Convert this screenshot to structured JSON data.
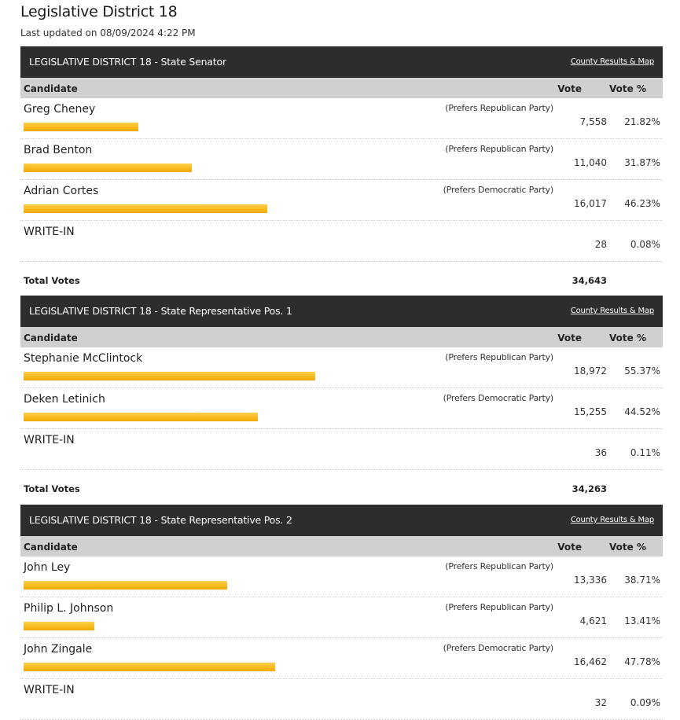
{
  "page": {
    "title": "Legislative District 18",
    "last_updated": "Last updated on 08/09/2024 4:22 PM"
  },
  "colors": {
    "header_bg": "#2d2d2d",
    "column_header_bg": "#d0d0d0",
    "bar": "#f5b51d"
  },
  "column_labels": {
    "candidate": "Candidate",
    "vote": "Vote",
    "vote_pct": "Vote %"
  },
  "total_label": "Total Votes",
  "races": [
    {
      "title": "LEGISLATIVE DISTRICT 18 - State Senator",
      "link": "County Results & Map",
      "candidates": [
        {
          "name": "Greg Cheney",
          "party": "(Prefers Republican Party)",
          "votes": "7,558",
          "pct": "21.82%",
          "share": 0.2182
        },
        {
          "name": "Brad Benton",
          "party": "(Prefers Republican Party)",
          "votes": "11,040",
          "pct": "31.87%",
          "share": 0.3187
        },
        {
          "name": "Adrian Cortes",
          "party": "(Prefers Democratic Party)",
          "votes": "16,017",
          "pct": "46.23%",
          "share": 0.4623
        },
        {
          "name": "WRITE-IN",
          "party": "",
          "votes": "28",
          "pct": "0.08%",
          "share": 0.0008
        }
      ],
      "total": "34,643"
    },
    {
      "title": "LEGISLATIVE DISTRICT 18 - State Representative Pos. 1",
      "link": "County Results & Map",
      "candidates": [
        {
          "name": "Stephanie McClintock",
          "party": "(Prefers Republican Party)",
          "votes": "18,972",
          "pct": "55.37%",
          "share": 0.5537
        },
        {
          "name": "Deken Letinich",
          "party": "(Prefers Democratic Party)",
          "votes": "15,255",
          "pct": "44.52%",
          "share": 0.4452
        },
        {
          "name": "WRITE-IN",
          "party": "",
          "votes": "36",
          "pct": "0.11%",
          "share": 0.0011
        }
      ],
      "total": "34,263"
    },
    {
      "title": "LEGISLATIVE DISTRICT 18 - State Representative Pos. 2",
      "link": "County Results & Map",
      "candidates": [
        {
          "name": "John Ley",
          "party": "(Prefers Republican Party)",
          "votes": "13,336",
          "pct": "38.71%",
          "share": 0.3871
        },
        {
          "name": "Philip L. Johnson",
          "party": "(Prefers Republican Party)",
          "votes": "4,621",
          "pct": "13.41%",
          "share": 0.1341
        },
        {
          "name": "John Zingale",
          "party": "(Prefers Democratic Party)",
          "votes": "16,462",
          "pct": "47.78%",
          "share": 0.4778
        },
        {
          "name": "WRITE-IN",
          "party": "",
          "votes": "32",
          "pct": "0.09%",
          "share": 0.0009
        }
      ],
      "total": null
    }
  ]
}
